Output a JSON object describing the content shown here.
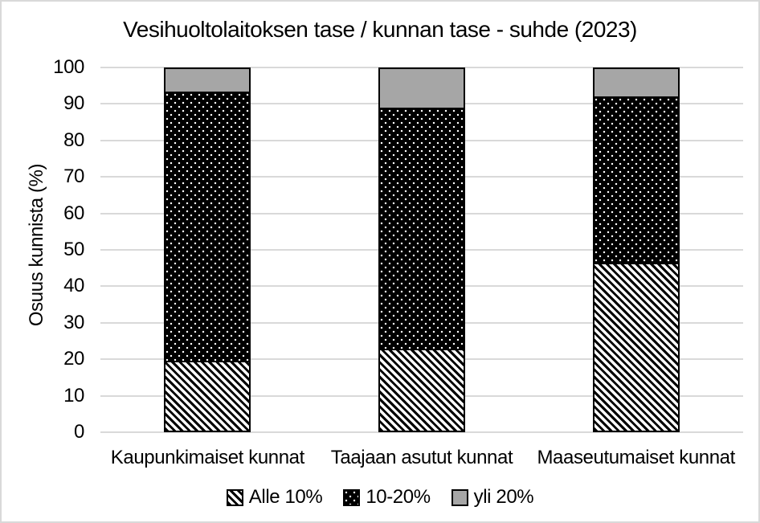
{
  "title": "Vesihuoltolaitoksen tase / kunnan tase - suhde (2023)",
  "colors": {
    "background": "#ffffff",
    "frame_border": "#d9d9d9",
    "gridline": "#d9d9d9",
    "text": "#000000",
    "bar_border": "#000000",
    "stripe_pattern_fg": "#000000",
    "stripe_pattern_bg": "#ffffff",
    "dots_pattern_fg": "#ffffff",
    "dots_pattern_bg": "#000000",
    "gray_fill": "#a6a6a6"
  },
  "chart_data": {
    "type": "bar",
    "stacked": true,
    "title": "Vesihuoltolaitoksen tase / kunnan tase - suhde (2023)",
    "categories": [
      "Kaupunkimaiset kunnat",
      "Taajaan asutut kunnat",
      "Maaseutumaiset kunnat"
    ],
    "series": [
      {
        "name": "Alle 10%",
        "pattern": "diagonal-stripes-black-on-white",
        "values": [
          19.5,
          23,
          46.5
        ]
      },
      {
        "name": "10-20%",
        "pattern": "white-dots-on-black",
        "values": [
          74,
          66,
          45.5
        ]
      },
      {
        "name": "yli 20%",
        "pattern": "solid-gray",
        "color": "#a6a6a6",
        "values": [
          6.5,
          11,
          8
        ]
      }
    ],
    "xlabel": "",
    "ylabel": "Osuus kunnista (%)",
    "ylim": [
      0,
      100
    ],
    "yticks": [
      0,
      10,
      20,
      30,
      40,
      50,
      60,
      70,
      80,
      90,
      100
    ],
    "units": "%",
    "grid": "horizontal",
    "legend_position": "bottom"
  }
}
